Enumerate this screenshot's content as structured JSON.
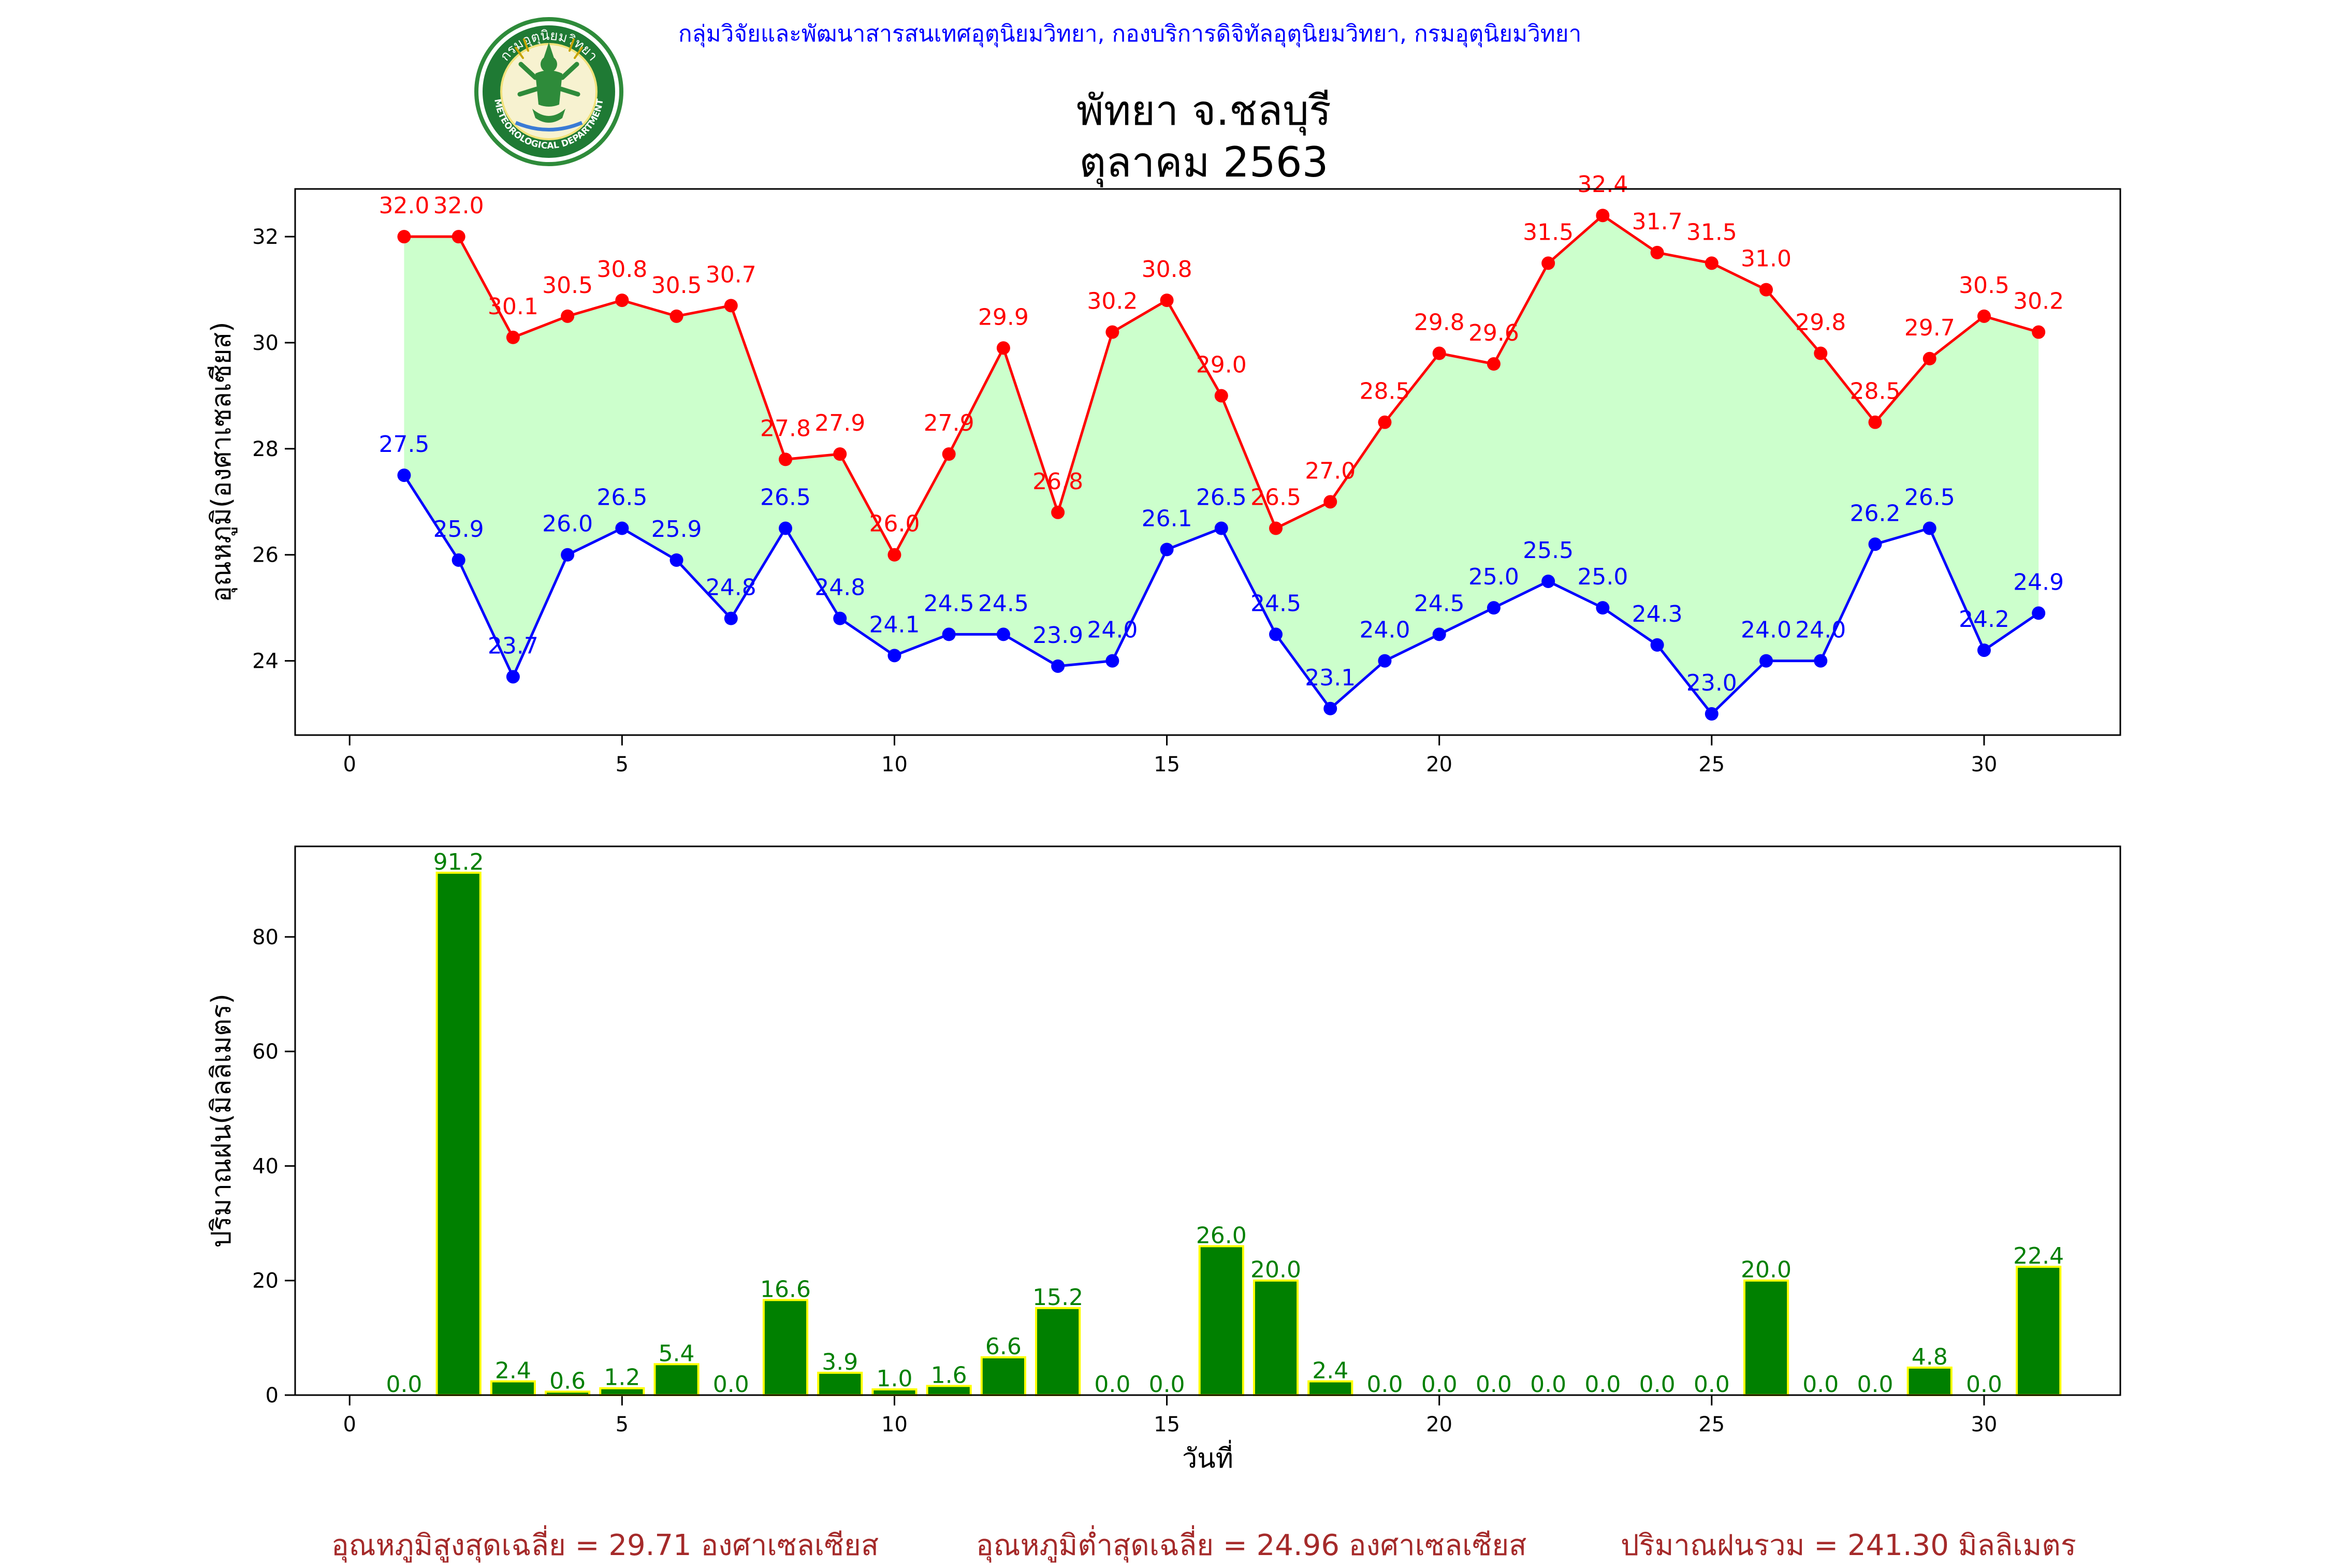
{
  "header": {
    "agency": "กลุ่มวิจัยและพัฒนาสารสนเทศอุตุนิยมวิทยา, กองบริการดิจิทัลอุตุนิยมวิทยา, กรมอุตุนิยมวิทยา",
    "agency_color": "#0000ff"
  },
  "logo": {
    "top_text": "กรมอุตุนิยมวิทยา",
    "bottom_text": "METEOROLOGICAL DEPARTMENT"
  },
  "title": {
    "line1": "พัทยา จ.ชลบุรี",
    "line2": "ตุลาคม 2563"
  },
  "summary": {
    "avg_max": "อุณหภูมิสูงสุดเฉลี่ย = 29.71 องศาเซลเซียส",
    "avg_min": "อุณหภูมิต่ำสุดเฉลี่ย = 24.96 องศาเซลเซียส",
    "rain_total": "ปริมาณฝนรวม = 241.30 มิลลิเมตร",
    "color": "#a52a2a"
  },
  "chart_data": [
    {
      "type": "line",
      "ylabel": "อุณหภูมิ(องศาเซลเซียส)",
      "xlabel": "",
      "xlim": [
        -1,
        32.5
      ],
      "ylim": [
        22.6,
        32.9
      ],
      "xticks": [
        0,
        5,
        10,
        15,
        20,
        25,
        30
      ],
      "yticks": [
        24,
        26,
        28,
        30,
        32
      ],
      "fill_between": "#ccffcc",
      "grid": false,
      "x": [
        1,
        2,
        3,
        4,
        5,
        6,
        7,
        8,
        9,
        10,
        11,
        12,
        13,
        14,
        15,
        16,
        17,
        18,
        19,
        20,
        21,
        22,
        23,
        24,
        25,
        26,
        27,
        28,
        29,
        30,
        31
      ],
      "series": [
        {
          "color": "#ff0000",
          "values": [
            32.0,
            32.0,
            30.1,
            30.5,
            30.8,
            30.5,
            30.7,
            27.8,
            27.9,
            26.0,
            27.9,
            29.9,
            26.8,
            30.2,
            30.8,
            29.0,
            26.5,
            27.0,
            28.5,
            29.8,
            29.6,
            31.5,
            32.4,
            31.7,
            31.5,
            31.0,
            29.8,
            28.5,
            29.7,
            30.5,
            30.2
          ]
        },
        {
          "color": "#0000ff",
          "values": [
            27.5,
            25.9,
            23.7,
            26.0,
            26.5,
            25.9,
            24.8,
            26.5,
            24.8,
            24.1,
            24.5,
            24.5,
            23.9,
            24.0,
            26.1,
            26.5,
            24.5,
            23.1,
            24.0,
            24.5,
            25.0,
            25.5,
            25.0,
            24.3,
            23.0,
            24.0,
            24.0,
            26.2,
            26.5,
            24.2,
            24.9
          ]
        }
      ]
    },
    {
      "type": "bar",
      "ylabel": "ปริมาณฝน(มิลลิเมตร)",
      "xlabel": "วันที่",
      "xlim": [
        -1,
        32.5
      ],
      "ylim": [
        0,
        95.8
      ],
      "xticks": [
        0,
        5,
        10,
        15,
        20,
        25,
        30
      ],
      "yticks": [
        0,
        20,
        40,
        60,
        80
      ],
      "bar_color": "#008000",
      "edge_color": "#ffff00",
      "label_color": "#008000",
      "grid": false,
      "categories": [
        1,
        2,
        3,
        4,
        5,
        6,
        7,
        8,
        9,
        10,
        11,
        12,
        13,
        14,
        15,
        16,
        17,
        18,
        19,
        20,
        21,
        22,
        23,
        24,
        25,
        26,
        27,
        28,
        29,
        30,
        31
      ],
      "values": [
        0.0,
        91.2,
        2.4,
        0.6,
        1.2,
        5.4,
        0.0,
        16.6,
        3.9,
        1.0,
        1.6,
        6.6,
        15.2,
        0.0,
        0.0,
        26.0,
        20.0,
        2.4,
        0.0,
        0.0,
        0.0,
        0.0,
        0.0,
        0.0,
        0.0,
        20.0,
        0.0,
        0.0,
        4.8,
        0.0,
        22.4
      ]
    }
  ]
}
